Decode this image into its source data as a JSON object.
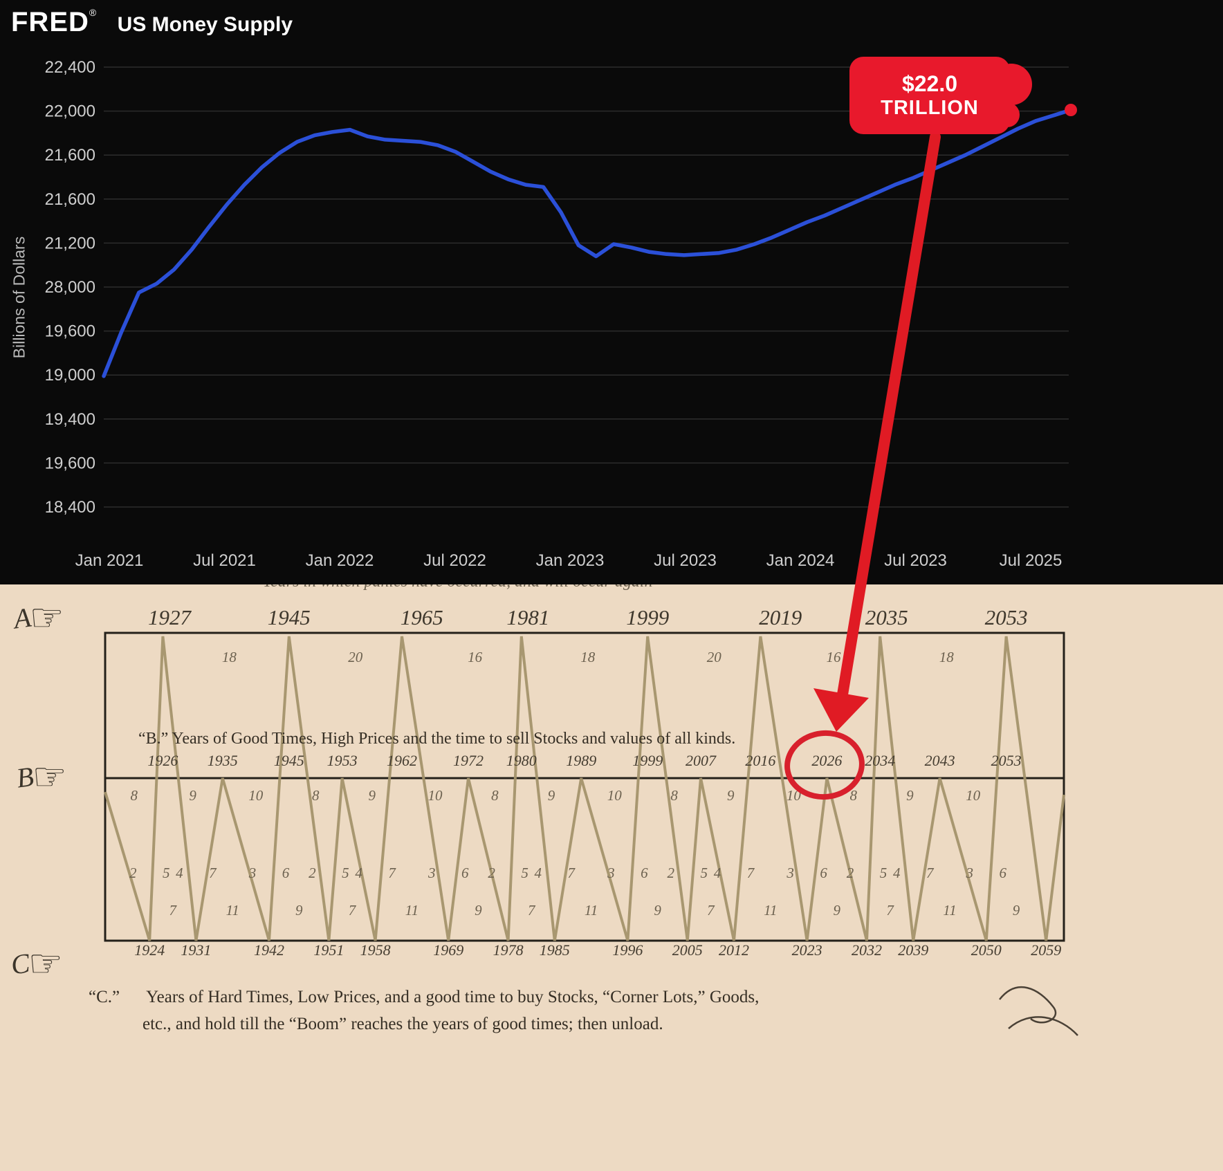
{
  "header": {
    "logo": "FRED",
    "registered": "®",
    "title": "US Money Supply"
  },
  "annotation": {
    "line1": "$22.0",
    "line2": "TRILLION",
    "color": "#e8192c"
  },
  "icons": {
    "pointing_hand": "☞"
  },
  "chart_data": [
    {
      "type": "line",
      "title": "US Money Supply",
      "ylabel": "Billions of Dollars",
      "y_tick_labels": [
        "22,400",
        "22,000",
        "21,600",
        "21,600",
        "21,200",
        "28,000",
        "19,600",
        "19,000",
        "19,400",
        "19,600",
        "18,400"
      ],
      "x_tick_labels": [
        "Jan 2021",
        "Jul 2021",
        "Jan 2022",
        "Jul 2022",
        "Jan 2023",
        "Jul 2023",
        "Jan 2024",
        "Jul 2023",
        "Jul 2025"
      ],
      "y_axis_internal_range": [
        18400,
        22400
      ],
      "grid": true,
      "legend": "none",
      "end_point_label": "$22.0 TRILLION",
      "series": [
        {
          "name": "US Money Supply",
          "color": "#2b50d8",
          "start": "Jan 2021",
          "interval": "monthly",
          "values": [
            19590,
            19990,
            20350,
            20430,
            20560,
            20740,
            20950,
            21150,
            21330,
            21490,
            21620,
            21720,
            21780,
            21810,
            21830,
            21770,
            21740,
            21730,
            21720,
            21690,
            21630,
            21540,
            21450,
            21380,
            21330,
            21310,
            21080,
            20780,
            20680,
            20790,
            20760,
            20720,
            20700,
            20690,
            20700,
            20710,
            20740,
            20790,
            20850,
            20920,
            20990,
            21050,
            21120,
            21190,
            21260,
            21330,
            21390,
            21460,
            21530,
            21600,
            21680,
            21760,
            21840,
            21910,
            21960,
            22010
          ]
        }
      ]
    },
    {
      "type": "cycle-diagram",
      "name": "Benner Cycle",
      "row_a": {
        "label": "A",
        "caption_fragment": "Years in which panics have occurred, and will occur again",
        "years": [
          1927,
          1945,
          1965,
          1981,
          1999,
          2019,
          2035,
          2053
        ],
        "intervals": [
          18,
          20,
          16,
          18,
          20,
          16,
          18
        ]
      },
      "row_b": {
        "label": "B",
        "heading": "“B.” Years of Good Times, High Prices and the time to sell Stocks and values of all kinds.",
        "peaks": [
          {
            "year": 1926,
            "tall": true
          },
          {
            "year": 1935,
            "tall": false
          },
          {
            "year": 1945,
            "tall": true
          },
          {
            "year": 1953,
            "tall": false
          },
          {
            "year": 1962,
            "tall": true
          },
          {
            "year": 1972,
            "tall": false
          },
          {
            "year": 1980,
            "tall": true
          },
          {
            "year": 1989,
            "tall": false
          },
          {
            "year": 1999,
            "tall": true
          },
          {
            "year": 2007,
            "tall": false
          },
          {
            "year": 2016,
            "tall": true
          },
          {
            "year": 2026,
            "tall": false
          },
          {
            "year": 2034,
            "tall": true
          },
          {
            "year": 2043,
            "tall": false
          },
          {
            "year": 2053,
            "tall": true
          }
        ],
        "intervals": [
          8,
          9,
          10,
          8,
          9,
          10,
          8,
          9,
          10,
          8,
          9,
          10,
          8,
          9,
          10
        ],
        "highlighted_year": 2026
      },
      "mid_pairs": [
        [
          "2",
          "5"
        ],
        [
          "4",
          "7"
        ],
        [
          "3",
          "6"
        ],
        [
          "2",
          "5"
        ],
        [
          "4",
          "7"
        ],
        [
          "3",
          "6"
        ],
        [
          "2",
          "5"
        ],
        [
          "4",
          "7"
        ],
        [
          "3",
          "6"
        ],
        [
          "2",
          "5"
        ],
        [
          "4",
          "7"
        ],
        [
          "3",
          "6"
        ],
        [
          "2",
          "5"
        ],
        [
          "4",
          "7"
        ],
        [
          "3",
          "6"
        ]
      ],
      "row_c": {
        "label": "C",
        "years": [
          1924,
          1931,
          1942,
          1951,
          1958,
          1969,
          1978,
          1985,
          1996,
          2005,
          2012,
          2023,
          2032,
          2039,
          2050,
          2059
        ],
        "intervals": [
          7,
          11,
          9,
          7,
          11,
          9,
          7,
          11,
          9,
          7,
          11,
          9,
          7,
          11,
          9
        ],
        "caption_label": "“C.”",
        "caption_line1": "Years of Hard Times, Low Prices, and a good time to buy Stocks, “Corner Lots,” Goods,",
        "caption_line2": "etc., and hold till  the “Boom” reaches the years of good times; then unload."
      }
    }
  ]
}
